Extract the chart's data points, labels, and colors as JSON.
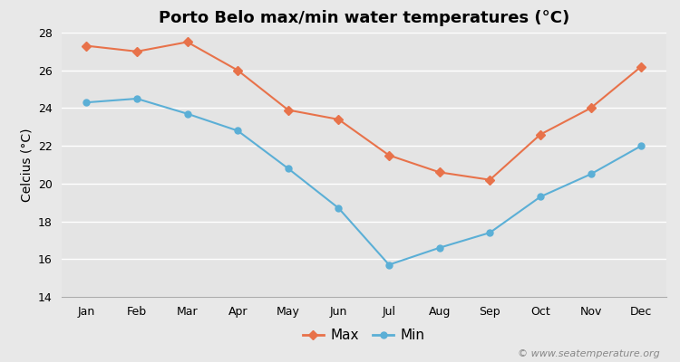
{
  "title": "Porto Belo max/min water temperatures (°C)",
  "ylabel": "Celcius (°C)",
  "months": [
    "Jan",
    "Feb",
    "Mar",
    "Apr",
    "May",
    "Jun",
    "Jul",
    "Aug",
    "Sep",
    "Oct",
    "Nov",
    "Dec"
  ],
  "max_values": [
    27.3,
    27.0,
    27.5,
    26.0,
    23.9,
    23.4,
    21.5,
    20.6,
    20.2,
    22.6,
    24.0,
    26.2
  ],
  "min_values": [
    24.3,
    24.5,
    23.7,
    22.8,
    20.8,
    18.7,
    15.7,
    16.6,
    17.4,
    19.3,
    20.5,
    22.0
  ],
  "max_color": "#e8724a",
  "min_color": "#5bafd6",
  "background_color": "#e8e8e8",
  "plot_bg_color": "#e4e4e4",
  "grid_color": "#ffffff",
  "ylim": [
    14,
    28
  ],
  "yticks": [
    14,
    16,
    18,
    20,
    22,
    24,
    26,
    28
  ],
  "legend_labels": [
    "Max",
    "Min"
  ],
  "watermark": "© www.seatemperature.org",
  "title_fontsize": 13,
  "label_fontsize": 10,
  "tick_fontsize": 9,
  "watermark_fontsize": 8
}
